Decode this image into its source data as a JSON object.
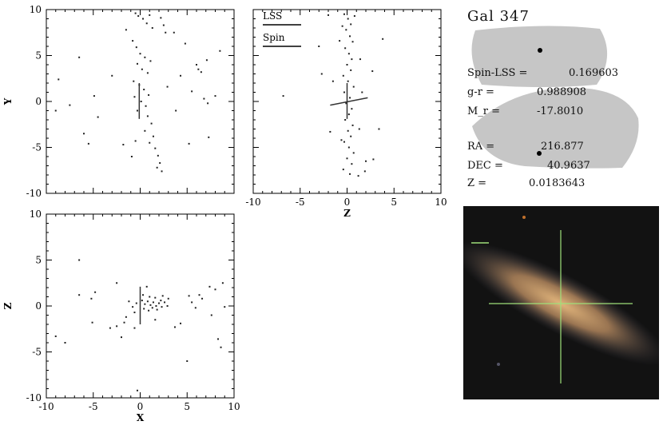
{
  "title": "Gal 347",
  "legend": {
    "lss": "LSS",
    "spin": "Spin"
  },
  "info": {
    "spin_lss_label": "Spin-LSS =",
    "spin_lss_value": "0.169603",
    "gr_label": "g-r =",
    "gr_value": "0.988908",
    "mr_label": "M_r =",
    "mr_value": "-17.8010",
    "ra_label": "RA =",
    "ra_value": "216.877",
    "dec_label": "DEC =",
    "dec_value": "40.9637",
    "z_label": "Z =",
    "z_value": "0.0183643"
  },
  "colors": {
    "points": "#222222",
    "sky": "#c8c8c8",
    "photo_bg": "#101010",
    "galaxy": "#b58a5c",
    "crosshair": "#9fe07a"
  },
  "chart_data": [
    {
      "type": "scatter",
      "xlabel": "",
      "ylabel": "Y",
      "xlim": [
        -10,
        10
      ],
      "ylim": [
        -10,
        10
      ],
      "xticks": [
        -10,
        -5,
        0,
        5,
        10
      ],
      "yticks": [
        -10,
        -5,
        0,
        5,
        10
      ],
      "show_x_ticklabels": false,
      "points": [
        [
          -0.5,
          9.6
        ],
        [
          -0.2,
          9.3
        ],
        [
          0.3,
          9.0
        ],
        [
          0.7,
          8.5
        ],
        [
          1.0,
          9.4
        ],
        [
          1.3,
          8.0
        ],
        [
          2.2,
          9.1
        ],
        [
          2.5,
          8.3
        ],
        [
          2.7,
          7.5
        ],
        [
          -1.5,
          7.8
        ],
        [
          -0.8,
          6.6
        ],
        [
          -0.4,
          5.9
        ],
        [
          0.0,
          5.2
        ],
        [
          0.5,
          4.8
        ],
        [
          -0.3,
          4.1
        ],
        [
          0.2,
          3.5
        ],
        [
          0.8,
          3.1
        ],
        [
          1.1,
          4.4
        ],
        [
          -0.7,
          2.2
        ],
        [
          -0.1,
          1.8
        ],
        [
          0.4,
          1.3
        ],
        [
          0.9,
          0.7
        ],
        [
          -0.6,
          0.5
        ],
        [
          0.1,
          0.0
        ],
        [
          0.6,
          -0.5
        ],
        [
          -0.3,
          -1.0
        ],
        [
          0.8,
          -1.6
        ],
        [
          1.2,
          -2.4
        ],
        [
          0.5,
          -3.2
        ],
        [
          1.4,
          -3.8
        ],
        [
          1.0,
          -4.5
        ],
        [
          1.6,
          -5.1
        ],
        [
          1.9,
          -5.9
        ],
        [
          2.1,
          -6.7
        ],
        [
          2.3,
          -7.6
        ],
        [
          1.8,
          -7.2
        ],
        [
          -0.5,
          -4.3
        ],
        [
          -0.9,
          -6.0
        ],
        [
          6.0,
          4.0
        ],
        [
          6.2,
          3.5
        ],
        [
          6.5,
          3.2
        ],
        [
          7.1,
          4.5
        ],
        [
          8.5,
          5.5
        ],
        [
          6.8,
          0.3
        ],
        [
          7.2,
          -0.2
        ],
        [
          5.5,
          1.1
        ],
        [
          8.0,
          0.6
        ],
        [
          -6.5,
          4.8
        ],
        [
          -8.7,
          2.4
        ],
        [
          -4.9,
          0.6
        ],
        [
          -6.0,
          -3.5
        ],
        [
          -9.0,
          -1.0
        ],
        [
          -4.5,
          -1.7
        ],
        [
          3.8,
          -1.0
        ],
        [
          5.2,
          -4.6
        ],
        [
          7.3,
          -3.9
        ],
        [
          -5.5,
          -4.6
        ],
        [
          -1.8,
          -4.7
        ],
        [
          2.9,
          1.6
        ],
        [
          4.3,
          2.8
        ],
        [
          -7.5,
          -0.4
        ],
        [
          3.6,
          7.5
        ],
        [
          4.8,
          6.3
        ],
        [
          -3.0,
          2.8
        ]
      ],
      "lines": [
        {
          "name": "Spin",
          "from": [
            -0.1,
            2.0
          ],
          "to": [
            -0.1,
            -1.9
          ]
        }
      ]
    },
    {
      "type": "scatter",
      "xlabel": "Z",
      "ylabel": "",
      "xlim": [
        -10,
        10
      ],
      "ylim": [
        -10,
        10
      ],
      "xticks": [
        -10,
        -5,
        0,
        5,
        10
      ],
      "yticks": [
        -10,
        -5,
        0,
        5,
        10
      ],
      "show_y_ticklabels": false,
      "points": [
        [
          -0.3,
          9.5
        ],
        [
          0.1,
          9.0
        ],
        [
          0.4,
          8.4
        ],
        [
          -0.1,
          7.8
        ],
        [
          0.3,
          7.1
        ],
        [
          0.6,
          6.5
        ],
        [
          -0.2,
          5.8
        ],
        [
          0.2,
          5.2
        ],
        [
          0.5,
          4.6
        ],
        [
          0.0,
          4.0
        ],
        [
          0.4,
          3.4
        ],
        [
          -0.4,
          2.8
        ],
        [
          0.1,
          2.2
        ],
        [
          0.7,
          1.6
        ],
        [
          -0.3,
          1.0
        ],
        [
          0.3,
          0.4
        ],
        [
          -0.1,
          -0.2
        ],
        [
          0.5,
          -0.8
        ],
        [
          0.2,
          -1.4
        ],
        [
          -0.2,
          -2.0
        ],
        [
          0.6,
          -2.6
        ],
        [
          0.1,
          -3.2
        ],
        [
          0.4,
          -3.8
        ],
        [
          -0.3,
          -4.4
        ],
        [
          0.2,
          -5.0
        ],
        [
          0.7,
          -5.6
        ],
        [
          0.0,
          -6.2
        ],
        [
          0.5,
          -6.8
        ],
        [
          -0.4,
          -7.4
        ],
        [
          0.3,
          -7.9
        ],
        [
          1.2,
          -8.1
        ],
        [
          1.9,
          -7.6
        ],
        [
          2.0,
          -6.5
        ],
        [
          -0.8,
          6.6
        ],
        [
          1.4,
          4.6
        ],
        [
          1.6,
          1.0
        ],
        [
          -1.5,
          2.2
        ],
        [
          -0.6,
          -4.2
        ],
        [
          1.3,
          -3.0
        ],
        [
          2.7,
          3.3
        ],
        [
          3.8,
          6.8
        ],
        [
          -2.0,
          9.4
        ],
        [
          -3.0,
          6.0
        ],
        [
          -2.7,
          3.0
        ],
        [
          -1.8,
          -3.3
        ],
        [
          3.4,
          -3.0
        ],
        [
          2.8,
          -6.3
        ],
        [
          -0.5,
          8.2
        ],
        [
          0.8,
          9.3
        ],
        [
          -6.8,
          0.6
        ]
      ],
      "lines": [
        {
          "name": "LSS",
          "from": [
            -1.8,
            -0.4
          ],
          "to": [
            2.2,
            0.4
          ]
        },
        {
          "name": "Spin",
          "from": [
            0.0,
            2.0
          ],
          "to": [
            0.0,
            -1.9
          ]
        }
      ]
    },
    {
      "type": "scatter",
      "xlabel": "X",
      "ylabel": "Z",
      "xlim": [
        -10,
        10
      ],
      "ylim": [
        -10,
        10
      ],
      "xticks": [
        -10,
        -5,
        0,
        5,
        10
      ],
      "yticks": [
        -10,
        -5,
        0,
        5,
        10
      ],
      "points": [
        [
          0.2,
          0.6
        ],
        [
          0.5,
          0.2
        ],
        [
          0.8,
          0.5
        ],
        [
          1.1,
          0.1
        ],
        [
          1.4,
          0.4
        ],
        [
          1.7,
          0.0
        ],
        [
          2.0,
          0.3
        ],
        [
          2.3,
          -0.1
        ],
        [
          2.6,
          0.4
        ],
        [
          2.9,
          0.0
        ],
        [
          0.4,
          -0.3
        ],
        [
          0.9,
          -0.5
        ],
        [
          1.3,
          -0.2
        ],
        [
          1.8,
          -0.4
        ],
        [
          2.2,
          0.6
        ],
        [
          -0.4,
          0.3
        ],
        [
          -0.8,
          -0.1
        ],
        [
          -1.2,
          0.5
        ],
        [
          -0.6,
          -0.7
        ],
        [
          0.3,
          1.2
        ],
        [
          1.0,
          1.0
        ],
        [
          1.6,
          0.9
        ],
        [
          2.4,
          1.1
        ],
        [
          3.0,
          0.8
        ],
        [
          -1.5,
          -1.2
        ],
        [
          -1.7,
          -1.8
        ],
        [
          -2.5,
          -2.2
        ],
        [
          -2.0,
          -3.4
        ],
        [
          -3.2,
          -2.4
        ],
        [
          -6.5,
          5.0
        ],
        [
          -4.8,
          1.5
        ],
        [
          -5.2,
          0.8
        ],
        [
          -6.5,
          1.2
        ],
        [
          -9.0,
          -3.3
        ],
        [
          -8.0,
          -4.0
        ],
        [
          -5.1,
          -1.8
        ],
        [
          -2.5,
          2.5
        ],
        [
          0.7,
          2.1
        ],
        [
          5.2,
          1.1
        ],
        [
          5.5,
          0.4
        ],
        [
          6.3,
          1.2
        ],
        [
          6.6,
          0.8
        ],
        [
          7.4,
          2.1
        ],
        [
          8.0,
          1.8
        ],
        [
          8.8,
          2.5
        ],
        [
          9.0,
          -0.1
        ],
        [
          8.6,
          -4.5
        ],
        [
          8.3,
          -3.6
        ],
        [
          7.6,
          -1.0
        ],
        [
          4.3,
          -1.9
        ],
        [
          3.7,
          -2.3
        ],
        [
          5.0,
          -6.0
        ],
        [
          5.9,
          -0.2
        ],
        [
          -0.6,
          -2.4
        ],
        [
          -0.3,
          -9.2
        ],
        [
          1.6,
          -1.5
        ]
      ],
      "lines": [
        {
          "name": "Spin",
          "from": [
            0.0,
            2.1
          ],
          "to": [
            0.0,
            -2.0
          ]
        }
      ]
    }
  ]
}
